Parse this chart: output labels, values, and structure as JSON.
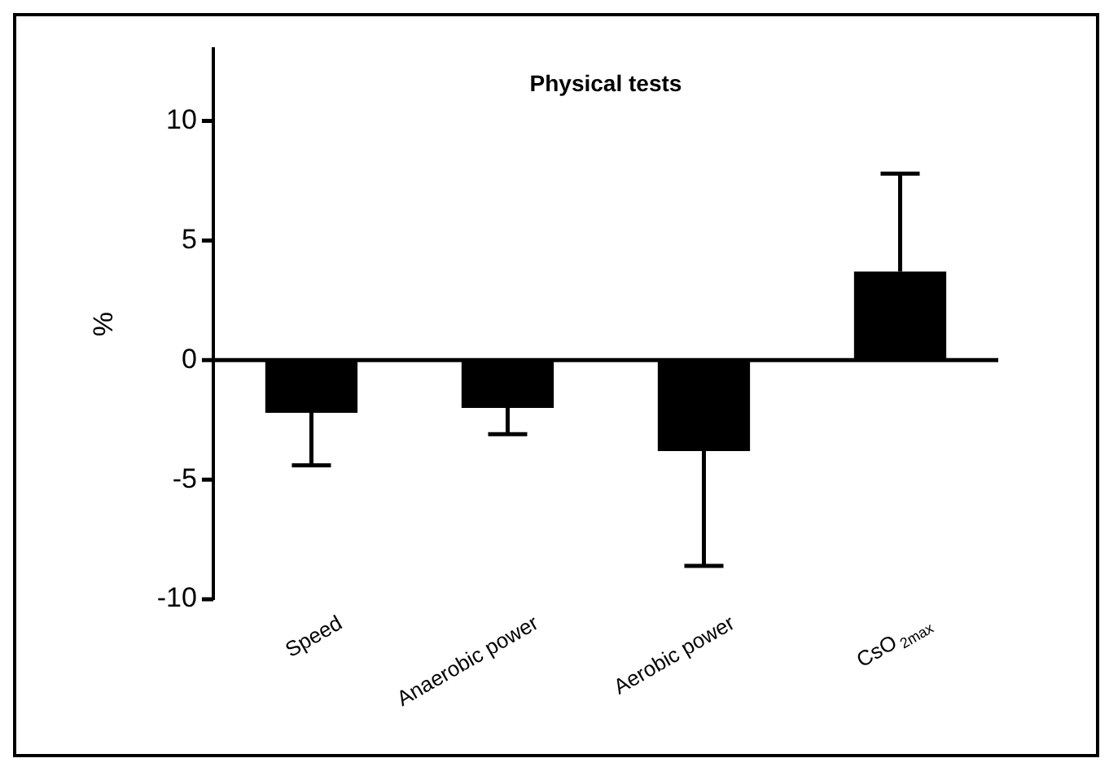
{
  "chart_data": {
    "type": "bar",
    "title": "Physical tests",
    "ylabel": "%",
    "categories": [
      "Speed",
      "Anaerobic power",
      "Aerobic power",
      "CsO$_{2max}$"
    ],
    "values": [
      -2.2,
      -2.0,
      -3.8,
      3.7
    ],
    "color": "#000000",
    "errors": [
      [
        -4.4,
        -2.2
      ],
      [
        -3.1,
        -2.0
      ],
      [
        -8.6,
        -3.8
      ],
      [
        3.7,
        7.8
      ]
    ],
    "ref_lines": [
      {
        "axis": "y",
        "value": 0,
        "color": "#000000"
      }
    ],
    "ylim": [
      -10,
      13
    ],
    "yticks": [
      -10,
      -5,
      0,
      5,
      10
    ],
    "grid": false,
    "legend": false
  }
}
